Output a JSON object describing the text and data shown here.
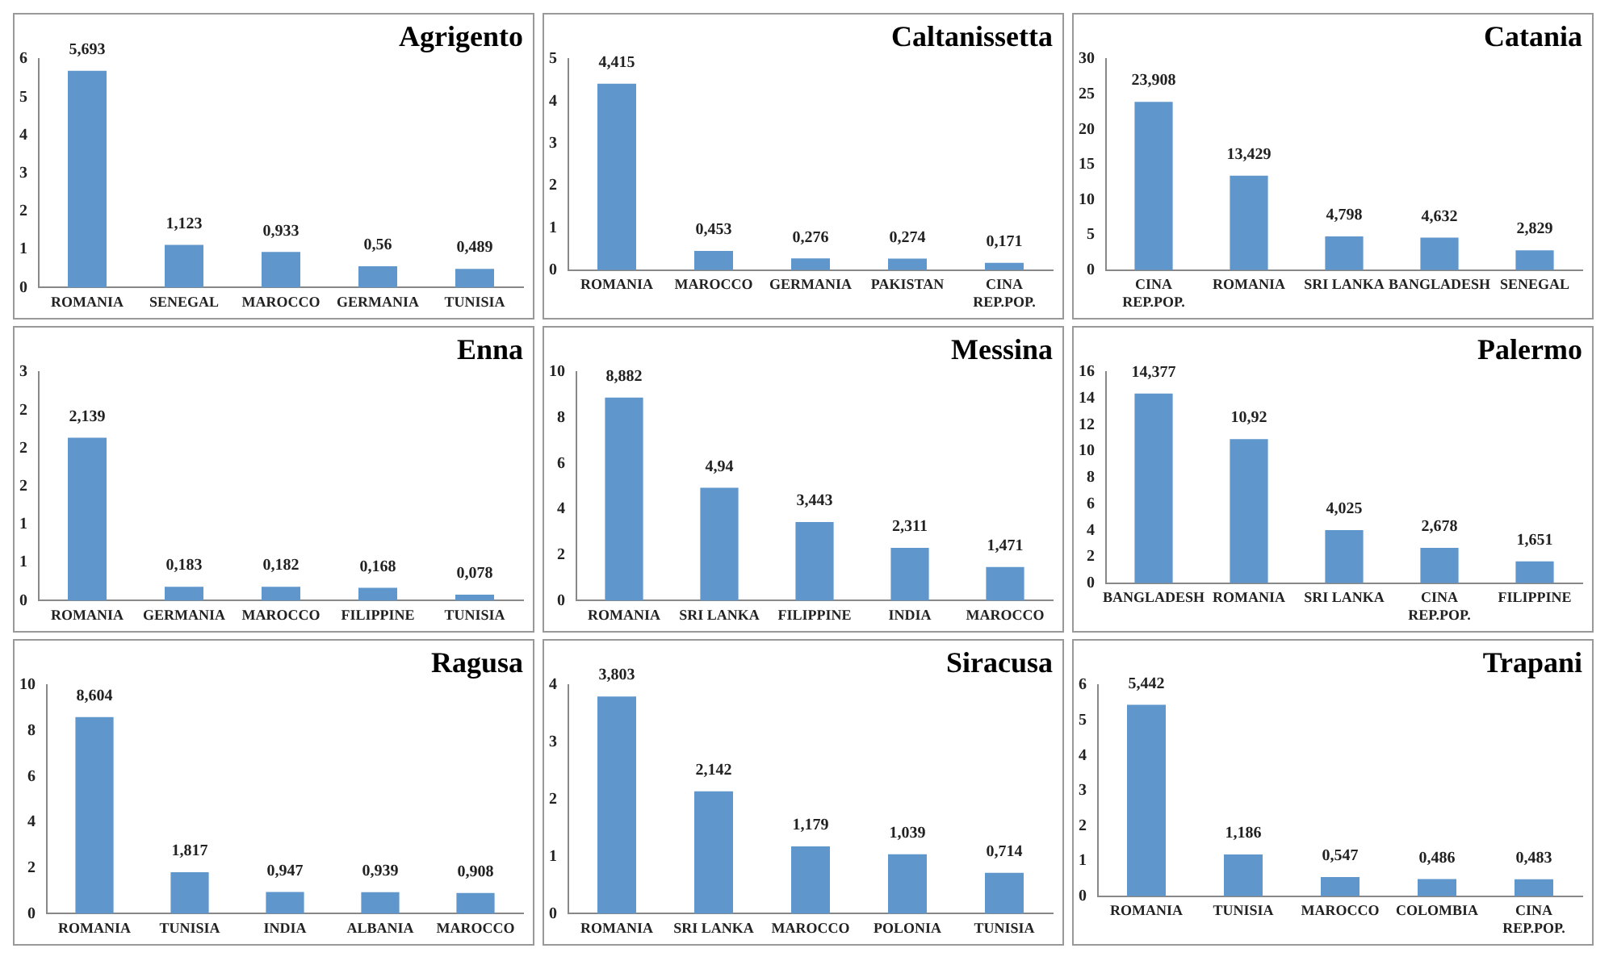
{
  "chart_data": [
    {
      "type": "bar",
      "title": "Agrigento",
      "categories": [
        "ROMANIA",
        "SENEGAL",
        "MAROCCO",
        "GERMANIA",
        "TUNISIA"
      ],
      "values": [
        5.693,
        1.123,
        0.933,
        0.56,
        0.489
      ],
      "value_labels": [
        "5,693",
        "1,123",
        "0,933",
        "0,56",
        "0,489"
      ],
      "color": "#5f96cb",
      "ylim": [
        0,
        6
      ],
      "yticks": [
        0,
        1,
        2,
        3,
        4,
        5,
        6
      ],
      "grid": false,
      "legend": false
    },
    {
      "type": "bar",
      "title": "Caltanissetta",
      "categories": [
        "ROMANIA",
        "MAROCCO",
        "GERMANIA",
        "PAKISTAN",
        "CINA REP.POP."
      ],
      "values": [
        4.415,
        0.453,
        0.276,
        0.274,
        0.171
      ],
      "value_labels": [
        "4,415",
        "0,453",
        "0,276",
        "0,274",
        "0,171"
      ],
      "color": "#5f96cb",
      "ylim": [
        0,
        5
      ],
      "yticks": [
        0,
        1,
        2,
        3,
        4,
        5
      ],
      "grid": false,
      "legend": false
    },
    {
      "type": "bar",
      "title": "Catania",
      "categories": [
        "CINA REP.POP.",
        "ROMANIA",
        "SRI LANKA",
        "BANGLADESH",
        "SENEGAL"
      ],
      "values": [
        23.908,
        13.429,
        4.798,
        4.632,
        2.829
      ],
      "value_labels": [
        "23,908",
        "13,429",
        "4,798",
        "4,632",
        "2,829"
      ],
      "color": "#5f96cb",
      "ylim": [
        0,
        30
      ],
      "yticks": [
        0,
        5,
        10,
        15,
        20,
        25,
        30
      ],
      "grid": false,
      "legend": false
    },
    {
      "type": "bar",
      "title": "Enna",
      "categories": [
        "ROMANIA",
        "GERMANIA",
        "MAROCCO",
        "FILIPPINE",
        "TUNISIA"
      ],
      "values": [
        2.139,
        0.183,
        0.182,
        0.168,
        0.078
      ],
      "value_labels": [
        "2,139",
        "0,183",
        "0,182",
        "0,168",
        "0,078"
      ],
      "color": "#5f96cb",
      "ylim": [
        0,
        3
      ],
      "yticks": [
        0,
        {
          "value": 0.5,
          "label": "1"
        },
        1,
        {
          "value": 1.5,
          "label": "2"
        },
        2,
        {
          "value": 2.5,
          "label": "2"
        },
        3
      ],
      "grid": false,
      "legend": false
    },
    {
      "type": "bar",
      "title": "Messina",
      "categories": [
        "ROMANIA",
        "SRI LANKA",
        "FILIPPINE",
        "INDIA",
        "MAROCCO"
      ],
      "values": [
        8.882,
        4.94,
        3.443,
        2.311,
        1.471
      ],
      "value_labels": [
        "8,882",
        "4,94",
        "3,443",
        "2,311",
        "1,471"
      ],
      "color": "#5f96cb",
      "ylim": [
        0,
        10
      ],
      "yticks": [
        0,
        2,
        4,
        6,
        8,
        10
      ],
      "grid": false,
      "legend": false
    },
    {
      "type": "bar",
      "title": "Palermo",
      "categories": [
        "BANGLADESH",
        "ROMANIA",
        "SRI LANKA",
        "CINA REP.POP.",
        "FILIPPINE"
      ],
      "values": [
        14.377,
        10.92,
        4.025,
        2.678,
        1.651
      ],
      "value_labels": [
        "14,377",
        "10,92",
        "4,025",
        "2,678",
        "1,651"
      ],
      "color": "#5f96cb",
      "ylim": [
        0,
        16
      ],
      "yticks": [
        0,
        2,
        4,
        6,
        8,
        10,
        12,
        14,
        16
      ],
      "grid": false,
      "legend": false
    },
    {
      "type": "bar",
      "title": "Ragusa",
      "categories": [
        "ROMANIA",
        "TUNISIA",
        "INDIA",
        "ALBANIA",
        "MAROCCO"
      ],
      "values": [
        8.604,
        1.817,
        0.947,
        0.939,
        0.908
      ],
      "value_labels": [
        "8,604",
        "1,817",
        "0,947",
        "0,939",
        "0,908"
      ],
      "color": "#5f96cb",
      "ylim": [
        0,
        10
      ],
      "yticks": [
        0,
        2,
        4,
        6,
        8,
        10
      ],
      "grid": false,
      "legend": false
    },
    {
      "type": "bar",
      "title": "Siracusa",
      "categories": [
        "ROMANIA",
        "SRI LANKA",
        "MAROCCO",
        "POLONIA",
        "TUNISIA"
      ],
      "values": [
        3.803,
        2.142,
        1.179,
        1.039,
        0.714
      ],
      "value_labels": [
        "3,803",
        "2,142",
        "1,179",
        "1,039",
        "0,714"
      ],
      "color": "#5f96cb",
      "ylim": [
        0,
        4
      ],
      "yticks": [
        0,
        1,
        2,
        3,
        4
      ],
      "grid": false,
      "legend": false
    },
    {
      "type": "bar",
      "title": "Trapani",
      "categories": [
        "ROMANIA",
        "TUNISIA",
        "MAROCCO",
        "COLOMBIA",
        "CINA REP.POP."
      ],
      "values": [
        5.442,
        1.186,
        0.547,
        0.486,
        0.483
      ],
      "value_labels": [
        "5,442",
        "1,186",
        "0,547",
        "0,486",
        "0,483"
      ],
      "color": "#5f96cb",
      "ylim": [
        0,
        6
      ],
      "yticks": [
        0,
        1,
        2,
        3,
        4,
        5,
        6
      ],
      "grid": false,
      "legend": false
    }
  ]
}
